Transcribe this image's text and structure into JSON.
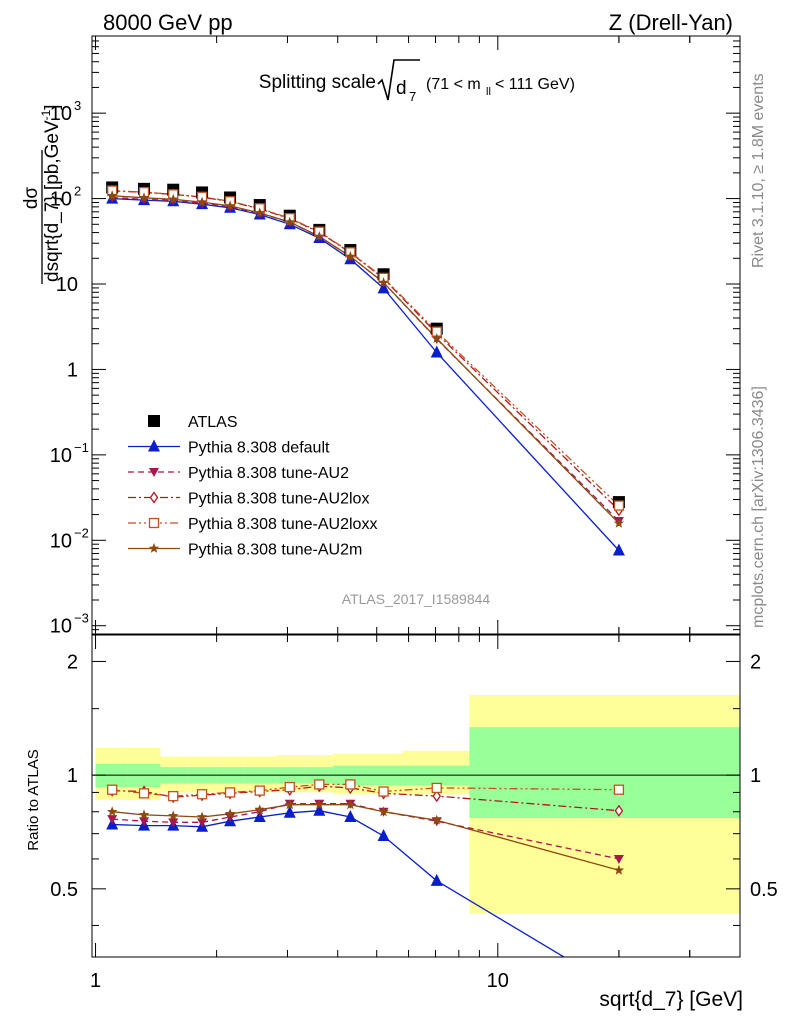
{
  "header": {
    "left": "8000 GeV pp",
    "right": "Z (Drell-Yan)"
  },
  "side_labels": {
    "upper": "Rivet 3.1.10, ≥ 1.8M events",
    "lower": "mcplots.cern.ch [arXiv:1306.3436]"
  },
  "chart_data": {
    "type": "line",
    "title_main": "Splitting scale",
    "title_var": "d",
    "title_var_sub": "7",
    "title_range_pre": "(71 < m",
    "title_range_sub": "ll",
    "title_range_post": " < 111 GeV)",
    "watermark": "ATLAS_2017_I1589844",
    "xlabel": "sqrt{d_7} [GeV]",
    "ylabel_top": "dσ",
    "ylabel_bottom": "dsqrt{d_7} [pb,GeV",
    "ylabel_sup": "-1",
    "ylabel_close": "]",
    "ratio_ylabel": "Ratio to ATLAS",
    "x_scale": "log",
    "xlim": [
      0.98,
      40
    ],
    "ylim": [
      0.0008,
      8000
    ],
    "ratio_ylim": [
      0.33,
      2.35
    ],
    "x_ticks": [
      {
        "v": 1,
        "label": "1"
      },
      {
        "v": 10,
        "label": "10"
      }
    ],
    "y_ticks": [
      {
        "v": 0.001,
        "base": "10",
        "exp": "−3"
      },
      {
        "v": 0.01,
        "base": "10",
        "exp": "−2"
      },
      {
        "v": 0.1,
        "base": "10",
        "exp": "−1"
      },
      {
        "v": 1,
        "base": "1",
        "exp": ""
      },
      {
        "v": 10,
        "base": "10",
        "exp": ""
      },
      {
        "v": 100,
        "base": "10",
        "exp": "2"
      },
      {
        "v": 1000,
        "base": "10",
        "exp": "3"
      }
    ],
    "ratio_ticks": [
      {
        "v": 0.5,
        "label": "0.5"
      },
      {
        "v": 1,
        "label": "1"
      },
      {
        "v": 2,
        "label": "2"
      }
    ],
    "bins": [
      1.0,
      1.2,
      1.45,
      1.7,
      2.0,
      2.35,
      2.8,
      3.3,
      3.9,
      4.7,
      5.8,
      8.5,
      40
    ],
    "x": [
      1.1,
      1.32,
      1.56,
      1.84,
      2.16,
      2.56,
      3.04,
      3.6,
      4.3,
      5.2,
      7.05,
      20.0
    ],
    "band_inner": [
      [
        0.93,
        1.07
      ],
      [
        0.93,
        1.07
      ],
      [
        0.95,
        1.05
      ],
      [
        0.95,
        1.05
      ],
      [
        0.95,
        1.05
      ],
      [
        0.95,
        1.05
      ],
      [
        0.95,
        1.05
      ],
      [
        0.95,
        1.05
      ],
      [
        0.94,
        1.06
      ],
      [
        0.94,
        1.06
      ],
      [
        0.94,
        1.06
      ],
      [
        0.77,
        1.34
      ]
    ],
    "band_outer": [
      [
        0.86,
        1.18
      ],
      [
        0.86,
        1.18
      ],
      [
        0.9,
        1.12
      ],
      [
        0.9,
        1.12
      ],
      [
        0.9,
        1.12
      ],
      [
        0.9,
        1.12
      ],
      [
        0.9,
        1.13
      ],
      [
        0.9,
        1.13
      ],
      [
        0.89,
        1.14
      ],
      [
        0.89,
        1.14
      ],
      [
        0.89,
        1.16
      ],
      [
        0.43,
        1.63
      ]
    ],
    "series": [
      {
        "name": "ATLAS",
        "color": "#000000",
        "marker": "square",
        "line": "none",
        "values": [
          135,
          130,
          127,
          118,
          103,
          84,
          63,
          43,
          25,
          13,
          3.0,
          0.028
        ]
      },
      {
        "name": "Pythia 8.308 default",
        "color": "#0a1ecc",
        "marker": "triangle-up",
        "line": "solid",
        "values": [
          100,
          96,
          93,
          86,
          78,
          65,
          50,
          34.5,
          19.5,
          8.9,
          1.58,
          0.0076
        ],
        "ratio": [
          0.74,
          0.735,
          0.735,
          0.73,
          0.755,
          0.775,
          0.795,
          0.805,
          0.775,
          0.69,
          0.525,
          0.27
        ]
      },
      {
        "name": "Pythia 8.308 tune-AU2",
        "color": "#a8164f",
        "marker": "triangle-down",
        "line": "dash",
        "values": [
          103,
          98,
          95,
          88,
          80,
          67,
          53,
          36,
          21,
          10.4,
          2.27,
          0.0168
        ],
        "ratio": [
          0.765,
          0.755,
          0.75,
          0.75,
          0.775,
          0.8,
          0.84,
          0.84,
          0.84,
          0.8,
          0.755,
          0.6
        ]
      },
      {
        "name": "Pythia 8.308 tune-AU2lox",
        "color": "#b0181e",
        "marker": "diamond-open",
        "line": "dashdot",
        "values": [
          123,
          118,
          112,
          104,
          92,
          76,
          58,
          40.5,
          23.2,
          11.6,
          2.64,
          0.0225
        ],
        "ratio": [
          0.91,
          0.905,
          0.875,
          0.885,
          0.895,
          0.905,
          0.915,
          0.935,
          0.925,
          0.895,
          0.88,
          0.805
        ]
      },
      {
        "name": "Pythia 8.308 tune-AU2loxx",
        "color": "#c2511e",
        "marker": "square-open",
        "line": "dashdotdot",
        "values": [
          124,
          119,
          112,
          105,
          93,
          77,
          59,
          41,
          23.5,
          11.8,
          2.77,
          0.0255
        ],
        "ratio": [
          0.915,
          0.895,
          0.88,
          0.89,
          0.9,
          0.91,
          0.93,
          0.945,
          0.945,
          0.905,
          0.925,
          0.915
        ]
      },
      {
        "name": "Pythia 8.308 tune-AU2m",
        "color": "#8c4a10",
        "marker": "star",
        "line": "solid",
        "values": [
          108,
          102,
          98,
          91,
          82,
          68,
          53,
          36,
          21,
          10.4,
          2.3,
          0.0158
        ],
        "ratio": [
          0.8,
          0.785,
          0.78,
          0.775,
          0.79,
          0.81,
          0.835,
          0.835,
          0.835,
          0.8,
          0.76,
          0.56
        ]
      }
    ]
  }
}
